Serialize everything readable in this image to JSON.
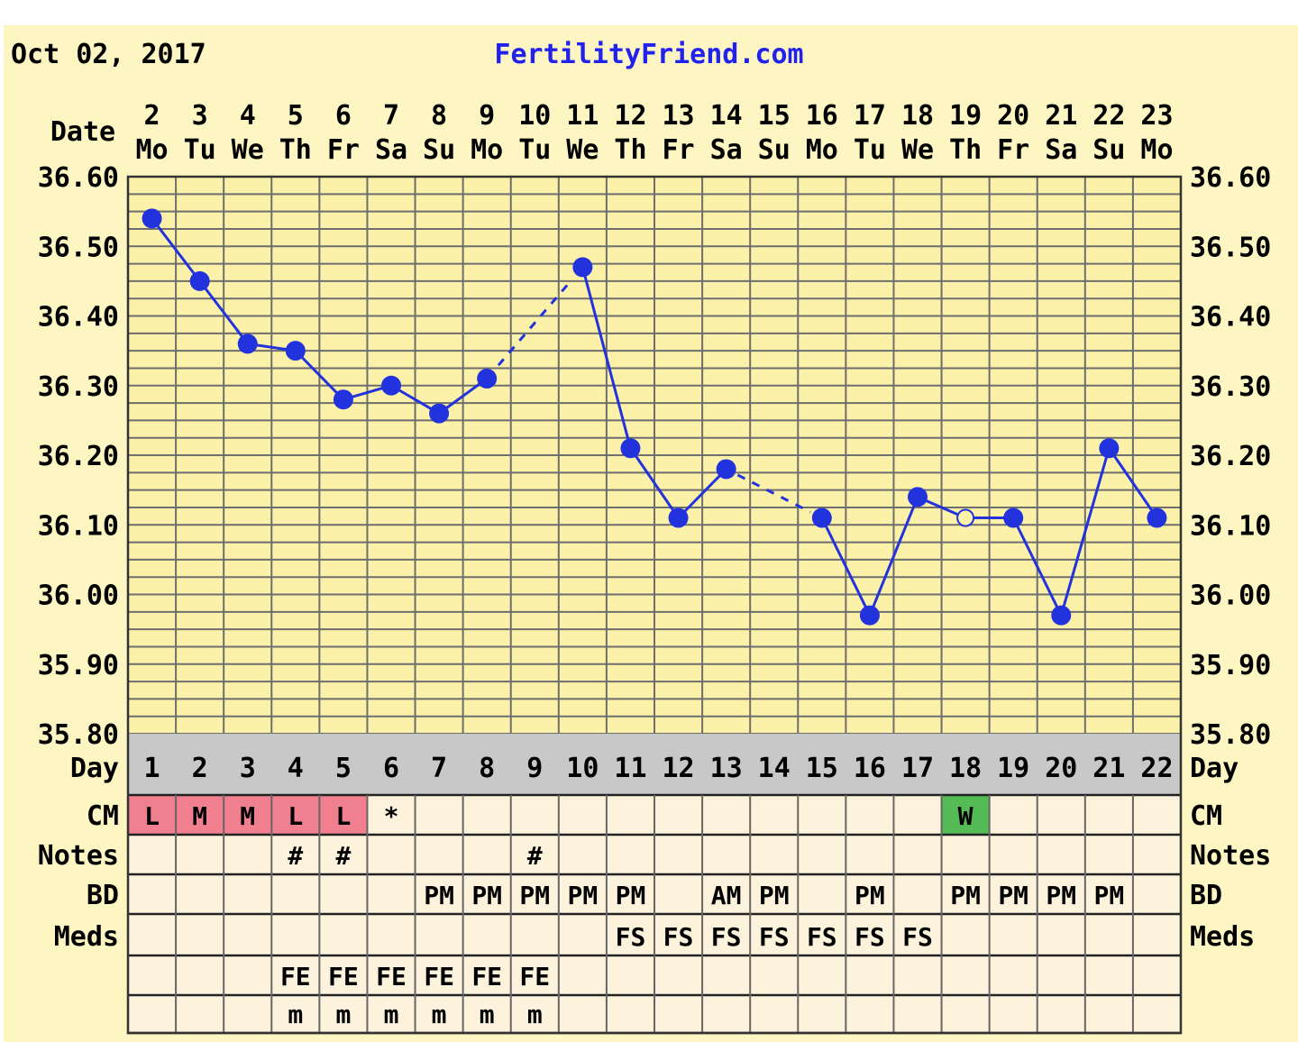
{
  "header": {
    "date": "Oct 02, 2017",
    "site": "FertilityFriend.com"
  },
  "colors": {
    "background": "#fdf5c2",
    "chart_bg": "#fbf1a8",
    "grid": "#6e6e6e",
    "line": "#2233dd",
    "day_band": "#c8c8c8",
    "table_bg": "#fdf3dc",
    "cm_red": "#f08090",
    "cm_green": "#55bb55"
  },
  "labels": {
    "date": "Date",
    "day": "Day",
    "cm": "CM",
    "notes": "Notes",
    "bd": "BD",
    "meds": "Meds"
  },
  "y_tick_labels": [
    "36.60",
    "36.50",
    "36.40",
    "36.30",
    "36.20",
    "36.10",
    "36.00",
    "35.90",
    "35.80"
  ],
  "chart_data": {
    "type": "line",
    "title": "",
    "xlabel": "",
    "ylabel": "",
    "ylim": [
      35.8,
      36.6
    ],
    "grid": true,
    "dates": [
      "2",
      "3",
      "4",
      "5",
      "6",
      "7",
      "8",
      "9",
      "10",
      "11",
      "12",
      "13",
      "14",
      "15",
      "16",
      "17",
      "18",
      "19",
      "20",
      "21",
      "22",
      "23"
    ],
    "weekdays": [
      "Mo",
      "Tu",
      "We",
      "Th",
      "Fr",
      "Sa",
      "Su",
      "Mo",
      "Tu",
      "We",
      "Th",
      "Fr",
      "Sa",
      "Su",
      "Mo",
      "Tu",
      "We",
      "Th",
      "Fr",
      "Sa",
      "Su",
      "Mo"
    ],
    "cycle_days": [
      "1",
      "2",
      "3",
      "4",
      "5",
      "6",
      "7",
      "8",
      "9",
      "10",
      "11",
      "12",
      "13",
      "14",
      "15",
      "16",
      "17",
      "18",
      "19",
      "20",
      "21",
      "22"
    ],
    "temperatures": [
      36.54,
      36.45,
      36.36,
      36.35,
      36.28,
      36.3,
      36.26,
      36.31,
      null,
      36.47,
      36.21,
      36.11,
      36.18,
      null,
      36.11,
      35.97,
      36.14,
      36.11,
      36.11,
      35.97,
      36.21,
      36.11
    ],
    "open_points": [
      17
    ]
  },
  "rows": {
    "cm": [
      "L",
      "M",
      "M",
      "L",
      "L",
      "*",
      "",
      "",
      "",
      "",
      "",
      "",
      "",
      "",
      "",
      "",
      "",
      "W",
      "",
      "",
      "",
      ""
    ],
    "cm_colors": [
      "red",
      "red",
      "red",
      "red",
      "red",
      "",
      "",
      "",
      "",
      "",
      "",
      "",
      "",
      "",
      "",
      "",
      "",
      "green",
      "",
      "",
      "",
      ""
    ],
    "notes": [
      "",
      "",
      "",
      "#",
      "#",
      "",
      "",
      "",
      "#",
      "",
      "",
      "",
      "",
      "",
      "",
      "",
      "",
      "",
      "",
      "",
      "",
      ""
    ],
    "bd": [
      "",
      "",
      "",
      "",
      "",
      "",
      "PM",
      "PM",
      "PM",
      "PM",
      "PM",
      "",
      "AM",
      "PM",
      "",
      "PM",
      "",
      "PM",
      "PM",
      "PM",
      "PM",
      ""
    ],
    "meds": [
      "",
      "",
      "",
      "",
      "",
      "",
      "",
      "",
      "",
      "",
      "FS",
      "FS",
      "FS",
      "FS",
      "FS",
      "FS",
      "FS",
      "",
      "",
      "",
      "",
      ""
    ],
    "extra1": [
      "",
      "",
      "",
      "FE",
      "FE",
      "FE",
      "FE",
      "FE",
      "FE",
      "",
      "",
      "",
      "",
      "",
      "",
      "",
      "",
      "",
      "",
      "",
      "",
      ""
    ],
    "extra2": [
      "",
      "",
      "",
      "m",
      "m",
      "m",
      "m",
      "m",
      "m",
      "",
      "",
      "",
      "",
      "",
      "",
      "",
      "",
      "",
      "",
      "",
      "",
      ""
    ]
  }
}
